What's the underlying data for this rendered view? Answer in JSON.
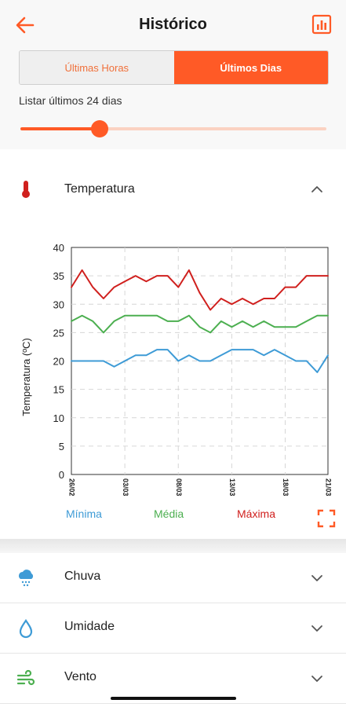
{
  "header": {
    "title": "Histórico"
  },
  "segment": {
    "left": "Últimas Horas",
    "right": "Últimos Dias",
    "selected": "right"
  },
  "range": {
    "label": "Listar últimos 24 dias",
    "slider_fraction": 0.26
  },
  "sections": {
    "temperature": {
      "label": "Temperatura"
    },
    "rain": {
      "label": "Chuva"
    },
    "humidity": {
      "label": "Umidade"
    },
    "wind": {
      "label": "Vento"
    }
  },
  "colors": {
    "accent": "#ff5a26",
    "min": "#3e9bd6",
    "avg": "#4caf50",
    "max": "#d0201e"
  },
  "chart_data": {
    "type": "line",
    "ylabel": "Temperatura (ºC)",
    "xlabel": "",
    "ylim": [
      0,
      40
    ],
    "yticks": [
      0,
      5,
      10,
      15,
      20,
      25,
      30,
      35,
      40
    ],
    "x_tick_labels": [
      "26/02",
      "03/03",
      "08/03",
      "13/03",
      "18/03",
      "21/03"
    ],
    "grid": true,
    "legend": "bottom",
    "series": [
      {
        "name": "Mínima",
        "color": "#3e9bd6",
        "values": [
          20,
          20,
          20,
          20,
          19,
          20,
          21,
          21,
          22,
          22,
          20,
          21,
          20,
          20,
          21,
          22,
          22,
          22,
          21,
          22,
          21,
          20,
          20,
          18,
          21
        ]
      },
      {
        "name": "Média",
        "color": "#4caf50",
        "values": [
          27,
          28,
          27,
          25,
          27,
          28,
          28,
          28,
          28,
          27,
          27,
          28,
          26,
          25,
          27,
          26,
          27,
          26,
          27,
          26,
          26,
          26,
          27,
          28,
          28
        ]
      },
      {
        "name": "Máxima",
        "color": "#d0201e",
        "values": [
          33,
          36,
          33,
          31,
          33,
          34,
          35,
          34,
          35,
          35,
          33,
          36,
          32,
          29,
          31,
          30,
          31,
          30,
          31,
          31,
          33,
          33,
          35,
          35,
          35
        ]
      }
    ]
  }
}
